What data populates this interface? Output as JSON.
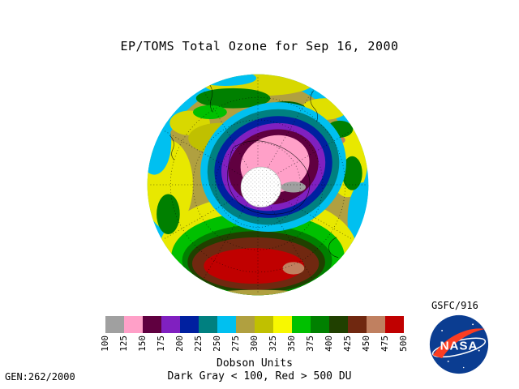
{
  "title": "EP/TOMS Total Ozone for Sep 16, 2000",
  "credit": "GSFC/916",
  "nasa_logo_text": "NASA",
  "footer": {
    "units_label": "Dobson Units",
    "range_note": "Dark Gray < 100, Red > 500 DU",
    "gen_label": "GEN:262/2000"
  },
  "colorbar": {
    "labels": [
      "100",
      "125",
      "150",
      "175",
      "200",
      "225",
      "250",
      "275",
      "300",
      "325",
      "350",
      "375",
      "400",
      "425",
      "450",
      "475",
      "500"
    ],
    "colors": [
      "#a0a0a0",
      "#ffa0c8",
      "#600040",
      "#8020c0",
      "#0020a0",
      "#008080",
      "#00c0f0",
      "#b0a040",
      "#c0c000",
      "#f8f800",
      "#00c000",
      "#008000",
      "#204000",
      "#702810",
      "#c08060",
      "#c00000"
    ]
  },
  "logo_colors": {
    "nasa_blue": "#0b3d91",
    "nasa_red": "#fc3d21"
  },
  "chart_data": {
    "type": "heatmap",
    "title": "EP/TOMS Total Ozone for Sep 16, 2000",
    "units": "Dobson Units",
    "scale_ticks_du": [
      100,
      125,
      150,
      175,
      200,
      225,
      250,
      275,
      300,
      325,
      350,
      375,
      400,
      425,
      450,
      475,
      500
    ],
    "scale_colors": [
      "#a0a0a0",
      "#ffa0c8",
      "#600040",
      "#8020c0",
      "#0020a0",
      "#008080",
      "#00c0f0",
      "#b0a040",
      "#c0c000",
      "#f8f800",
      "#00c000",
      "#008000",
      "#204000",
      "#702810",
      "#c08060",
      "#c00000"
    ],
    "under_range": "Dark Gray < 100",
    "over_range": "Red > 500 DU",
    "layout": "southern-hemisphere polar projection disk; ozone hole (pink/purple, ~125-225 DU) centered near pole with white stippled polar-night circle; high-ozone collar (400-500 DU, green/brown/red crescent) at lower mid-latitudes; 275-375 DU khaki/yellow/green elsewhere; dotted graticule every 30 degrees longitude"
  }
}
